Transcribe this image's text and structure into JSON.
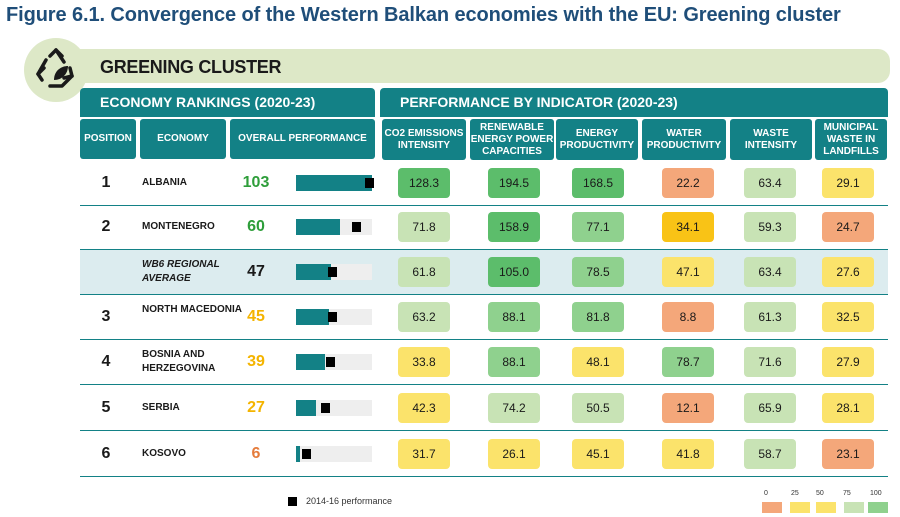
{
  "figure_title": "Figure 6.1. Convergence of the Western Balkan economies with the EU: Greening cluster",
  "cluster": {
    "title": "GREENING CLUSTER",
    "icon": "recycle-leaf-icon"
  },
  "sections": {
    "rankings": "ECONOMY RANKINGS (2020-23)",
    "performance": "PERFORMANCE BY INDICATOR (2020-23)"
  },
  "columns": {
    "position": "POSITION",
    "economy": "ECONOMY",
    "overall": "OVERALL PERFORMANCE",
    "indicators": [
      "CO2 EMISSIONS INTENSITY",
      "RENEWABLE ENERGY POWER CAPACITIES",
      "ENERGY PRODUCTIVITY",
      "WATER PRODUCTIVITY",
      "WASTE INTENSITY",
      "MUNICIPAL WASTE IN LANDFILLS"
    ]
  },
  "rows": [
    {
      "position": "1",
      "economy": "ALBANIA",
      "score": "103",
      "bar_value": 103,
      "marker_value": 100,
      "score_color": "#2e9e3a",
      "highlight": false,
      "values": [
        "128.3",
        "194.5",
        "168.5",
        "22.2",
        "63.4",
        "29.1"
      ],
      "colors": [
        "#5cbd6b",
        "#5cbd6b",
        "#5cbd6b",
        "#f4a77a",
        "#c8e3b5",
        "#fbe36b"
      ]
    },
    {
      "position": "2",
      "economy": "MONTENEGRO",
      "score": "60",
      "bar_value": 60,
      "marker_value": 83,
      "score_color": "#2e9e3a",
      "highlight": false,
      "values": [
        "71.8",
        "158.9",
        "77.1",
        "34.1",
        "59.3",
        "24.7"
      ],
      "colors": [
        "#c8e3b5",
        "#5cbd6b",
        "#8fd18e",
        "#f9c316",
        "#c8e3b5",
        "#f4a77a"
      ]
    },
    {
      "position": "",
      "economy": "WB6 REGIONAL AVERAGE",
      "score": "47",
      "bar_value": 47,
      "marker_value": 50,
      "score_color": "#1a1a1a",
      "highlight": true,
      "values": [
        "61.8",
        "105.0",
        "78.5",
        "47.1",
        "63.4",
        "27.6"
      ],
      "colors": [
        "#c8e3b5",
        "#5cbd6b",
        "#8fd18e",
        "#fbe36b",
        "#c8e3b5",
        "#fbe36b"
      ]
    },
    {
      "position": "3",
      "economy": "NORTH MACEDONIA",
      "score": "45",
      "bar_value": 45,
      "marker_value": 50,
      "score_color": "#f4b400",
      "highlight": false,
      "values": [
        "63.2",
        "88.1",
        "81.8",
        "8.8",
        "61.3",
        "32.5"
      ],
      "colors": [
        "#c8e3b5",
        "#8fd18e",
        "#8fd18e",
        "#f4a77a",
        "#c8e3b5",
        "#fbe36b"
      ]
    },
    {
      "position": "4",
      "economy": "BOSNIA AND HERZEGOVINA",
      "score": "39",
      "bar_value": 39,
      "marker_value": 48,
      "score_color": "#f4b400",
      "highlight": false,
      "values": [
        "33.8",
        "88.1",
        "48.1",
        "78.7",
        "71.6",
        "27.9"
      ],
      "colors": [
        "#fbe36b",
        "#8fd18e",
        "#fbe36b",
        "#8fd18e",
        "#c8e3b5",
        "#fbe36b"
      ]
    },
    {
      "position": "5",
      "economy": "SERBIA",
      "score": "27",
      "bar_value": 27,
      "marker_value": 40,
      "score_color": "#f4b400",
      "highlight": false,
      "values": [
        "42.3",
        "74.2",
        "50.5",
        "12.1",
        "65.9",
        "28.1"
      ],
      "colors": [
        "#fbe36b",
        "#c8e3b5",
        "#c8e3b5",
        "#f4a77a",
        "#c8e3b5",
        "#fbe36b"
      ]
    },
    {
      "position": "6",
      "economy": "KOSOVO",
      "score": "6",
      "bar_value": 6,
      "marker_value": 15,
      "score_color": "#e57c3c",
      "highlight": false,
      "values": [
        "31.7",
        "26.1",
        "45.1",
        "41.8",
        "58.7",
        "23.1"
      ],
      "colors": [
        "#fbe36b",
        "#fbe36b",
        "#fbe36b",
        "#fbe36b",
        "#c8e3b5",
        "#f4a77a"
      ]
    }
  ],
  "legend": {
    "marker_label": "2014-16 performance",
    "scale_labels": [
      "0",
      "25",
      "50",
      "75",
      "100"
    ],
    "scale_colors": [
      "#f4a77a",
      "#fbe36b",
      "#fbe36b",
      "#c8e3b5",
      "#8fd18e"
    ]
  }
}
